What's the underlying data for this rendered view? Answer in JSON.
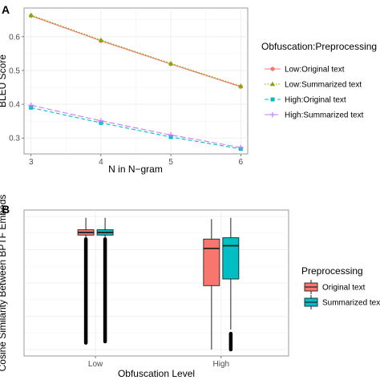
{
  "chart_data": [
    {
      "panel": "A",
      "type": "line",
      "xlabel": "N in N−gram",
      "ylabel": "BLEU Score",
      "x": [
        3,
        4,
        5,
        6
      ],
      "x_ticks": [
        "3",
        "4",
        "5",
        "6"
      ],
      "y_ticks": [
        "0.3",
        "0.4",
        "0.5",
        "0.6"
      ],
      "xlim": [
        2.9,
        6.1
      ],
      "ylim": [
        0.253,
        0.685
      ],
      "grid": true,
      "legend": {
        "title": "Obfuscation:Preprocessing",
        "position": "right"
      },
      "series": [
        {
          "name": "Low:Original text",
          "values": [
            0.662,
            0.588,
            0.519,
            0.452
          ],
          "color": "#F8766D",
          "marker": "circle",
          "dash": ""
        },
        {
          "name": "Low:Summarized text",
          "values": [
            0.664,
            0.59,
            0.521,
            0.454
          ],
          "color": "#7CAE00",
          "marker": "triangle",
          "dash": "1.5,2"
        },
        {
          "name": "High:Original text",
          "values": [
            0.39,
            0.345,
            0.303,
            0.268
          ],
          "color": "#00BFC4",
          "marker": "square",
          "dash": "5,3"
        },
        {
          "name": "High:Summarized text",
          "values": [
            0.397,
            0.351,
            0.309,
            0.272
          ],
          "color": "#C77CFF",
          "marker": "plus",
          "dash": "7,3"
        }
      ]
    },
    {
      "panel": "B",
      "type": "box",
      "xlabel": "Obfuscation Level",
      "ylabel": "Cosine Similarity Between BPTF Embeds",
      "categories": [
        "Low",
        "High"
      ],
      "ylim": [
        0,
        1
      ],
      "grid": true,
      "legend": {
        "title": "Preprocessing",
        "position": "right"
      },
      "series": [
        {
          "name": "Original text",
          "color": "#F8766D",
          "boxes": [
            {
              "category": "Low",
              "min": 0.83,
              "q1": 0.86,
              "median": 0.88,
              "q3": 0.9,
              "max": 0.99,
              "outliers_from": 0.05,
              "outliers_to": 0.83
            },
            {
              "category": "High",
              "min": 0.0,
              "q1": 0.48,
              "median": 0.76,
              "q3": 0.83,
              "max": 0.98,
              "outliers_from": null,
              "outliers_to": null
            }
          ]
        },
        {
          "name": "Summarized text",
          "color": "#00BFC4",
          "boxes": [
            {
              "category": "Low",
              "min": 0.83,
              "q1": 0.86,
              "median": 0.88,
              "q3": 0.9,
              "max": 0.99,
              "outliers_from": 0.06,
              "outliers_to": 0.83
            },
            {
              "category": "High",
              "min": 0.15,
              "q1": 0.53,
              "median": 0.78,
              "q3": 0.84,
              "max": 0.99,
              "outliers_from": 0.0,
              "outliers_to": 0.12
            }
          ]
        }
      ]
    }
  ]
}
